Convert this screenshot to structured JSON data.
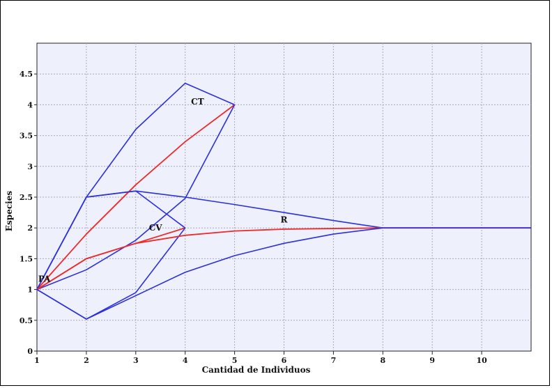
{
  "chart_data": {
    "type": "line",
    "title": "",
    "xlabel": "Cantidad de Individuos",
    "ylabel": "Especies",
    "xlim": [
      1,
      11
    ],
    "ylim": [
      0,
      5
    ],
    "x_ticks": [
      "1",
      "2",
      "3",
      "4",
      "5",
      "6",
      "7",
      "8",
      "9",
      "10"
    ],
    "y_ticks": [
      "0",
      "0.5",
      "1",
      "1.5",
      "2",
      "2.5",
      "3",
      "3.5",
      "4",
      "4.5"
    ],
    "grid": true,
    "colors": {
      "plot_bg": "#eef0fb",
      "envelope": "#2b2fe0",
      "mean": "#ee2a2a",
      "grid": "#a8a8c0"
    },
    "annotations": [
      {
        "text": "CT",
        "x": 4.25,
        "y": 4.05
      },
      {
        "text": "CV",
        "x": 3.4,
        "y": 2.0
      },
      {
        "text": "R",
        "x": 6.0,
        "y": 2.13
      },
      {
        "text": "PA",
        "x": 1.15,
        "y": 1.17
      }
    ],
    "series": [
      {
        "group": "CT",
        "role": "upper",
        "x": [
          1,
          2,
          3,
          4,
          5
        ],
        "y": [
          1,
          2.5,
          3.6,
          4.35,
          4
        ]
      },
      {
        "group": "CT",
        "role": "mean",
        "x": [
          1,
          2,
          3,
          4,
          5
        ],
        "y": [
          1,
          1.9,
          2.7,
          3.4,
          4
        ]
      },
      {
        "group": "CT",
        "role": "lower",
        "x": [
          1,
          2,
          3,
          4,
          5
        ],
        "y": [
          1,
          1.32,
          1.8,
          2.48,
          4
        ]
      },
      {
        "group": "CV",
        "role": "upper",
        "x": [
          1,
          2,
          3,
          4
        ],
        "y": [
          1,
          2.5,
          2.6,
          2
        ]
      },
      {
        "group": "CV",
        "role": "mean",
        "x": [
          1,
          2,
          3,
          4
        ],
        "y": [
          1,
          1.5,
          1.75,
          2
        ]
      },
      {
        "group": "CV",
        "role": "lower",
        "x": [
          1,
          2,
          3,
          4
        ],
        "y": [
          1,
          0.52,
          0.95,
          2
        ]
      },
      {
        "group": "R",
        "role": "upper",
        "x": [
          1,
          2,
          3,
          4,
          5,
          6,
          7,
          8,
          9,
          10,
          11
        ],
        "y": [
          1,
          2.5,
          2.6,
          2.5,
          2.38,
          2.25,
          2.12,
          2,
          2,
          2,
          2
        ]
      },
      {
        "group": "R",
        "role": "mean",
        "x": [
          1,
          2,
          3,
          4,
          5,
          6,
          7,
          8,
          9,
          10,
          11
        ],
        "y": [
          1,
          1.5,
          1.75,
          1.88,
          1.95,
          1.98,
          1.99,
          2,
          2,
          2,
          2
        ]
      },
      {
        "group": "R",
        "role": "lower",
        "x": [
          1,
          2,
          3,
          4,
          5,
          6,
          7,
          8,
          9,
          10,
          11
        ],
        "y": [
          1,
          0.52,
          0.9,
          1.28,
          1.55,
          1.75,
          1.9,
          2,
          2,
          2,
          2
        ]
      }
    ]
  }
}
